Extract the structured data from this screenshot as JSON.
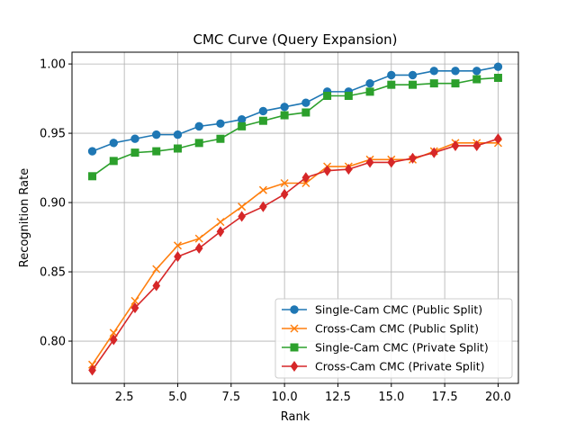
{
  "chart_data": {
    "type": "line",
    "title": "CMC Curve (Query Expansion)",
    "xlabel": "Rank",
    "ylabel": "Recognition Rate",
    "xlim": [
      0.05,
      20.95
    ],
    "ylim": [
      0.7695,
      1.0085
    ],
    "xticks": [
      2.5,
      5.0,
      7.5,
      10.0,
      12.5,
      15.0,
      17.5,
      20.0
    ],
    "xtick_labels": [
      "2.5",
      "5.0",
      "7.5",
      "10.0",
      "12.5",
      "15.0",
      "17.5",
      "20.0"
    ],
    "yticks": [
      0.8,
      0.85,
      0.9,
      0.95,
      1.0
    ],
    "ytick_labels": [
      "0.80",
      "0.85",
      "0.90",
      "0.95",
      "1.00"
    ],
    "grid": true,
    "legend_position": "lower-right",
    "x": [
      1,
      2,
      3,
      4,
      5,
      6,
      7,
      8,
      9,
      10,
      11,
      12,
      13,
      14,
      15,
      16,
      17,
      18,
      19,
      20
    ],
    "series": [
      {
        "name": "Single-Cam CMC (Public Split)",
        "color": "#1f77b4",
        "marker": "circle",
        "values": [
          0.937,
          0.943,
          0.946,
          0.949,
          0.949,
          0.955,
          0.957,
          0.96,
          0.966,
          0.969,
          0.972,
          0.98,
          0.98,
          0.986,
          0.992,
          0.992,
          0.995,
          0.995,
          0.995,
          0.998
        ]
      },
      {
        "name": "Cross-Cam CMC (Public Split)",
        "color": "#ff7f0e",
        "marker": "x",
        "values": [
          0.783,
          0.806,
          0.829,
          0.852,
          0.869,
          0.874,
          0.886,
          0.897,
          0.909,
          0.914,
          0.914,
          0.926,
          0.926,
          0.931,
          0.931,
          0.931,
          0.937,
          0.943,
          0.943,
          0.943
        ]
      },
      {
        "name": "Single-Cam CMC (Private Split)",
        "color": "#2ca02c",
        "marker": "square",
        "values": [
          0.919,
          0.93,
          0.936,
          0.937,
          0.939,
          0.943,
          0.946,
          0.955,
          0.959,
          0.963,
          0.965,
          0.977,
          0.977,
          0.98,
          0.985,
          0.985,
          0.986,
          0.986,
          0.989,
          0.99
        ]
      },
      {
        "name": "Cross-Cam CMC (Private Split)",
        "color": "#d62728",
        "marker": "diamond",
        "values": [
          0.779,
          0.801,
          0.824,
          0.84,
          0.861,
          0.867,
          0.879,
          0.89,
          0.897,
          0.906,
          0.918,
          0.923,
          0.924,
          0.929,
          0.929,
          0.932,
          0.936,
          0.941,
          0.941,
          0.946
        ]
      }
    ]
  }
}
